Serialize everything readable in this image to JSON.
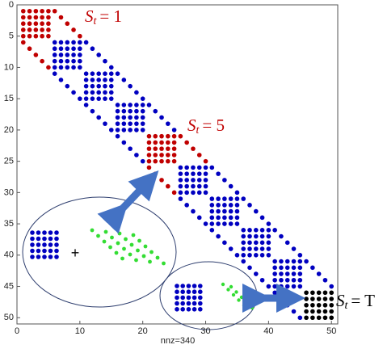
{
  "chart_data": {
    "type": "spy",
    "xlabel": "nnz=340",
    "xlim": [
      0,
      51
    ],
    "ylim": [
      0,
      51
    ],
    "xticks": [
      0,
      10,
      20,
      30,
      40,
      50
    ],
    "yticks": [
      0,
      5,
      10,
      15,
      20,
      25,
      30,
      35,
      40,
      45,
      50
    ],
    "blocks": [
      {
        "start": 1,
        "size": 5,
        "color": "#c00000"
      },
      {
        "start": 6,
        "size": 5,
        "color": "#0000c0"
      },
      {
        "start": 11,
        "size": 5,
        "color": "#0000c0"
      },
      {
        "start": 16,
        "size": 5,
        "color": "#0000c0"
      },
      {
        "start": 21,
        "size": 5,
        "color": "#c00000"
      },
      {
        "start": 26,
        "size": 5,
        "color": "#0000c0"
      },
      {
        "start": 31,
        "size": 5,
        "color": "#0000c0"
      },
      {
        "start": 36,
        "size": 5,
        "color": "#0000c0"
      },
      {
        "start": 41,
        "size": 5,
        "color": "#0000c0"
      },
      {
        "start": 46,
        "size": 5,
        "color": "#000000"
      }
    ],
    "offdiagonal_offset": 5,
    "annotations": [
      {
        "symbol": "S",
        "subscript": "t",
        "rhs": "= 1",
        "color": "#c00000"
      },
      {
        "symbol": "S",
        "subscript": "t",
        "rhs": "= 5",
        "color": "#c00000"
      },
      {
        "symbol": "S",
        "subscript": "t",
        "rhs": "= T",
        "color": "#000000"
      }
    ]
  }
}
